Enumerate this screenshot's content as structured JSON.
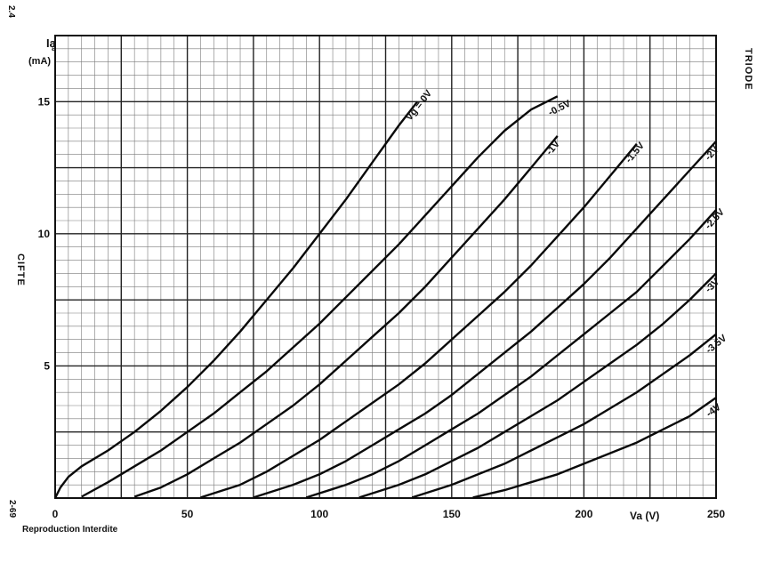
{
  "side_labels": {
    "top_left_code": "2.4",
    "bottom_left_code": "2-69",
    "tube_name": "CIFTE",
    "tube_type": "TRIODE",
    "footer": "Reproduction Interdite"
  },
  "chart_data": {
    "type": "line",
    "title": "",
    "ylabel_line1": "Ia",
    "ylabel_line1_sub": "a",
    "ylabel_line2": "(mA)",
    "xlabel": "Va (V)",
    "xlim": [
      0,
      250
    ],
    "ylim": [
      0,
      17.5
    ],
    "x_ticks": [
      0,
      50,
      100,
      150,
      200,
      250
    ],
    "y_ticks": [
      5,
      10,
      15
    ],
    "grid": true,
    "series": [
      {
        "name": "Vg = 0V",
        "label": "Vg = 0V",
        "x": [
          0,
          2,
          5,
          10,
          20,
          30,
          40,
          50,
          60,
          70,
          80,
          90,
          100,
          110,
          120,
          130,
          137
        ],
        "y": [
          0,
          0.4,
          0.8,
          1.2,
          1.8,
          2.5,
          3.3,
          4.2,
          5.2,
          6.3,
          7.5,
          8.7,
          10.0,
          11.3,
          12.7,
          14.1,
          15.0
        ]
      },
      {
        "name": "-0.5V",
        "label": "-0.5V",
        "x": [
          10,
          20,
          30,
          40,
          50,
          60,
          70,
          80,
          90,
          100,
          110,
          120,
          130,
          140,
          150,
          160,
          170,
          180,
          190
        ],
        "y": [
          0.05,
          0.6,
          1.2,
          1.8,
          2.5,
          3.2,
          4.0,
          4.8,
          5.7,
          6.6,
          7.6,
          8.6,
          9.6,
          10.7,
          11.8,
          12.9,
          13.9,
          14.7,
          15.2
        ]
      },
      {
        "name": "-1V",
        "label": "-1V",
        "x": [
          30,
          40,
          50,
          60,
          70,
          80,
          90,
          100,
          110,
          120,
          130,
          140,
          150,
          160,
          170,
          180,
          190
        ],
        "y": [
          0.05,
          0.4,
          0.9,
          1.5,
          2.1,
          2.8,
          3.5,
          4.3,
          5.2,
          6.1,
          7.0,
          8.0,
          9.1,
          10.2,
          11.3,
          12.5,
          13.7
        ]
      },
      {
        "name": "-1.5V",
        "label": "-1.5V",
        "x": [
          55,
          70,
          80,
          90,
          100,
          110,
          120,
          130,
          140,
          150,
          160,
          170,
          180,
          190,
          200,
          210,
          220
        ],
        "y": [
          0.02,
          0.5,
          1.0,
          1.6,
          2.2,
          2.9,
          3.6,
          4.3,
          5.1,
          6.0,
          6.9,
          7.8,
          8.8,
          9.9,
          11.0,
          12.2,
          13.4
        ]
      },
      {
        "name": "-2V",
        "label": "-2V",
        "x": [
          75,
          90,
          100,
          110,
          120,
          130,
          140,
          150,
          160,
          170,
          180,
          190,
          200,
          210,
          220,
          230,
          240,
          250
        ],
        "y": [
          0.02,
          0.5,
          0.9,
          1.4,
          2.0,
          2.6,
          3.2,
          3.9,
          4.7,
          5.5,
          6.3,
          7.2,
          8.1,
          9.1,
          10.2,
          11.3,
          12.4,
          13.5
        ]
      },
      {
        "name": "-2.5V",
        "label": "-2.5V",
        "x": [
          95,
          110,
          120,
          130,
          140,
          150,
          160,
          170,
          180,
          190,
          200,
          210,
          220,
          230,
          240,
          250
        ],
        "y": [
          0.02,
          0.5,
          0.9,
          1.4,
          2.0,
          2.6,
          3.2,
          3.9,
          4.6,
          5.4,
          6.2,
          7.0,
          7.8,
          8.8,
          9.8,
          10.9
        ]
      },
      {
        "name": "-3V",
        "label": "-3V",
        "x": [
          115,
          130,
          140,
          150,
          160,
          170,
          180,
          190,
          200,
          210,
          220,
          230,
          240,
          250
        ],
        "y": [
          0.02,
          0.5,
          0.9,
          1.4,
          1.9,
          2.5,
          3.1,
          3.7,
          4.4,
          5.1,
          5.8,
          6.6,
          7.5,
          8.5
        ]
      },
      {
        "name": "-3.5V",
        "label": "-3.5V",
        "x": [
          135,
          150,
          160,
          170,
          180,
          190,
          200,
          210,
          220,
          230,
          240,
          250
        ],
        "y": [
          0.02,
          0.5,
          0.9,
          1.3,
          1.8,
          2.3,
          2.8,
          3.4,
          4.0,
          4.7,
          5.4,
          6.2
        ]
      },
      {
        "name": "-4V",
        "label": "-4V",
        "x": [
          158,
          170,
          180,
          190,
          200,
          210,
          220,
          230,
          240,
          250
        ],
        "y": [
          0.02,
          0.3,
          0.6,
          0.9,
          1.3,
          1.7,
          2.1,
          2.6,
          3.1,
          3.8
        ]
      }
    ]
  }
}
